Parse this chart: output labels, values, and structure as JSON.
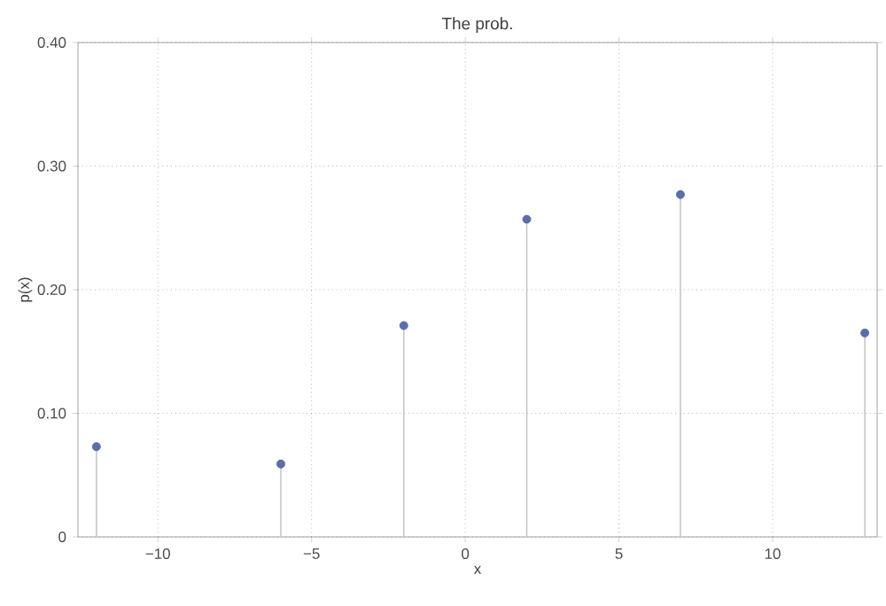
{
  "chart_data": {
    "type": "lollipop",
    "title": "The prob.",
    "xlabel": "x",
    "ylabel": "p(x)",
    "x": [
      -12,
      -6,
      -2,
      2,
      7,
      13
    ],
    "values": [
      0.073,
      0.059,
      0.171,
      0.257,
      0.277,
      0.165
    ],
    "color": "#5b6ea8",
    "grid": true,
    "xlim": [
      -12.6,
      13.4
    ],
    "xticks": [
      {
        "value": -10,
        "label": "−10"
      },
      {
        "value": -5,
        "label": "−5"
      },
      0,
      5,
      10
    ],
    "ylim": [
      0,
      0.4
    ],
    "yticks": [
      0,
      {
        "value": 0.1,
        "label": "0.10"
      },
      {
        "value": 0.2,
        "label": "0.20"
      },
      {
        "value": 0.3,
        "label": "0.30"
      },
      {
        "value": 0.4,
        "label": "0.40"
      }
    ]
  }
}
